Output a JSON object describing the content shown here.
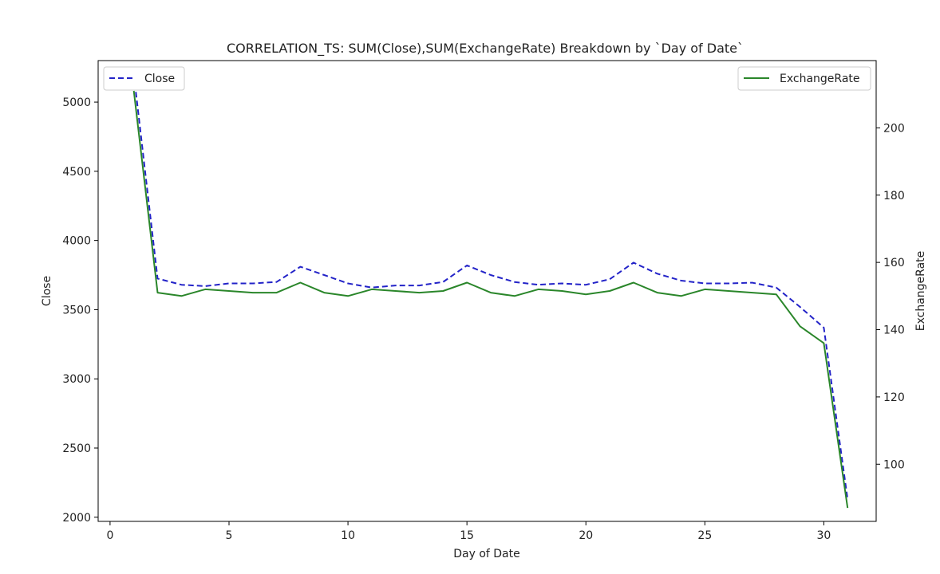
{
  "chart_data": {
    "type": "line",
    "title": "CORRELATION_TS: SUM(Close),SUM(ExchangeRate) Breakdown by `Day of Date`",
    "xlabel": "Day of Date",
    "ylabel_left": "Close",
    "ylabel_right": "ExchangeRate",
    "x": [
      1,
      2,
      3,
      4,
      5,
      6,
      7,
      8,
      9,
      10,
      11,
      12,
      13,
      14,
      15,
      16,
      17,
      18,
      19,
      20,
      21,
      22,
      23,
      24,
      25,
      26,
      27,
      28,
      29,
      30,
      31
    ],
    "xlim": [
      -0.5,
      32.2
    ],
    "ylim_left": [
      1970,
      5300
    ],
    "ylim_right": [
      83,
      220
    ],
    "x_ticks": [
      0,
      5,
      10,
      15,
      20,
      25,
      30
    ],
    "y_ticks_left": [
      2000,
      2500,
      3000,
      3500,
      4000,
      4500,
      5000
    ],
    "y_ticks_right": [
      100,
      120,
      140,
      160,
      180,
      200
    ],
    "grid": false,
    "series": [
      {
        "name": "Close",
        "axis": "left",
        "color": "#2323c8",
        "style": "dashed",
        "legend_position": "top-left",
        "values": [
          5200,
          3725,
          3680,
          3670,
          3690,
          3690,
          3700,
          3810,
          3750,
          3690,
          3660,
          3675,
          3675,
          3700,
          3820,
          3750,
          3700,
          3680,
          3690,
          3680,
          3720,
          3840,
          3760,
          3710,
          3690,
          3690,
          3695,
          3660,
          3520,
          3370,
          2130
        ]
      },
      {
        "name": "ExchangeRate",
        "axis": "right",
        "color": "#2a862a",
        "style": "solid",
        "legend_position": "top-right",
        "values": [
          211,
          151,
          150,
          152,
          151.5,
          151,
          151,
          154,
          151,
          150,
          152,
          151.5,
          151,
          151.5,
          154,
          151,
          150,
          152,
          151.5,
          150.5,
          151.5,
          154,
          151,
          150,
          152,
          151.5,
          151,
          150.5,
          141,
          136,
          87
        ]
      }
    ]
  }
}
